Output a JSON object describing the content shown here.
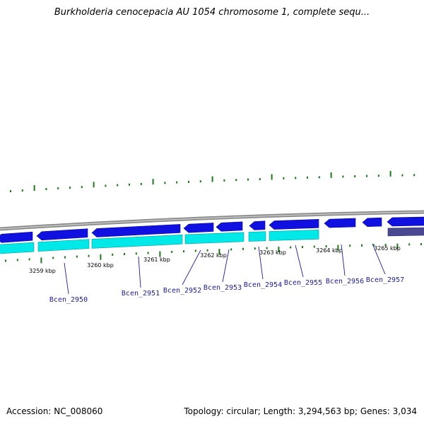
{
  "title": "Burkholderia cenocepacia AU 1054 chromosome 1, complete sequ...",
  "footer": {
    "accession": "Accession: NC_008060",
    "summary": "Topology: circular; Length: 3,294,563 bp; Genes: 3,034"
  },
  "colors": {
    "backbone": "#8a8a8a",
    "gene_forward": "#1010e0",
    "gene_reverse_track": "#00e8e8",
    "gene_special": "#4a4890",
    "gc_ticks": "#1a7a1a",
    "label_text": "#1a1aa8"
  },
  "ruler": [
    "3259 kbp",
    "3260 kbp",
    "3261 kbp",
    "3262 kbp",
    "3263 kbp",
    "3264 kbp",
    "3265 kbp"
  ],
  "genes": [
    "Bcen_2950",
    "Bcen_2951",
    "Bcen_2952",
    "Bcen_2953",
    "Bcen_2954",
    "Bcen_2955",
    "Bcen_2956",
    "Bcen_2957"
  ]
}
